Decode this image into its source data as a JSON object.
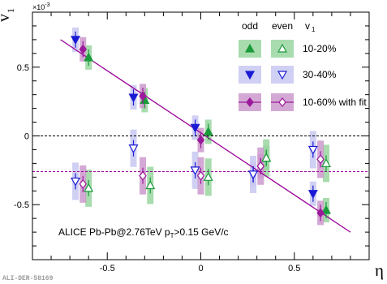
{
  "chart_data": {
    "type": "scatter",
    "xlabel": "η",
    "ylabel": "v",
    "ylabel_sub": "1",
    "y_exponent": "×10",
    "y_exponent_power": "-3",
    "xlim": [
      -0.9,
      0.9
    ],
    "ylim": [
      -0.9,
      0.9
    ],
    "x_ticks": [
      {
        "v": -0.5,
        "label": "-0.5"
      },
      {
        "v": 0,
        "label": "0"
      },
      {
        "v": 0.5,
        "label": "0.5"
      }
    ],
    "y_ticks": [
      {
        "v": -0.5,
        "label": "-0.5"
      },
      {
        "v": 0,
        "label": "0"
      },
      {
        "v": 0.5,
        "label": "0.5"
      }
    ],
    "legend": {
      "placement": "top-right",
      "col_headers": [
        "odd",
        "even",
        "v",
        "1"
      ],
      "row_labels": [
        "10-20%",
        "30-40%",
        "10-60% with fit"
      ]
    },
    "annotation_main": "ALICE Pb-Pb@2.76TeV  p",
    "annotation_sub": "T",
    "annotation_tail": ">0.15 GeV/c",
    "watermark": "ALI-DER-58169",
    "colors": {
      "green_line": "#1a9a3a",
      "green_box": "#99d6a0",
      "blue_line": "#1a1ad4",
      "blue_box": "#c8c8f2",
      "purple_line": "#9b1a9b",
      "purple_box": "#cc99cc",
      "fit_line": "#990099"
    },
    "fit": {
      "x": [
        -0.75,
        0.8
      ],
      "y": [
        0.7,
        -0.7
      ]
    },
    "even_fit_level": -0.26,
    "series": [
      {
        "name": "odd 10-20%",
        "group": "odd",
        "color": "green",
        "x": [
          -0.6,
          -0.3,
          0.04,
          0.35,
          0.67
        ],
        "y": [
          0.57,
          0.26,
          0.03,
          -0.16,
          -0.54
        ]
      },
      {
        "name": "even 10-20%",
        "group": "even",
        "color": "green",
        "x": [
          -0.6,
          -0.27,
          0.04,
          0.35,
          0.67
        ],
        "y": [
          -0.38,
          -0.36,
          -0.3,
          -0.16,
          -0.2
        ]
      },
      {
        "name": "odd 30-40%",
        "group": "odd",
        "color": "blue",
        "x": [
          -0.67,
          -0.36,
          -0.03,
          0.28,
          0.6
        ],
        "y": [
          0.7,
          0.28,
          0.06,
          -0.28,
          -0.42
        ]
      },
      {
        "name": "even 30-40%",
        "group": "even",
        "color": "blue",
        "x": [
          -0.67,
          -0.36,
          -0.03,
          0.28,
          0.6
        ],
        "y": [
          -0.33,
          -0.09,
          -0.25,
          -0.28,
          -0.1
        ]
      },
      {
        "name": "odd 10-60% with fit",
        "group": "odd",
        "color": "purple",
        "x": [
          -0.63,
          -0.31,
          0.0,
          0.32,
          0.64
        ],
        "y": [
          0.63,
          0.29,
          -0.03,
          -0.22,
          -0.56
        ]
      },
      {
        "name": "even 10-60% with fit",
        "group": "even",
        "color": "purple",
        "x": [
          -0.63,
          -0.31,
          0.0,
          0.32,
          0.64
        ],
        "y": [
          -0.35,
          -0.29,
          -0.29,
          -0.22,
          -0.17
        ]
      }
    ]
  }
}
